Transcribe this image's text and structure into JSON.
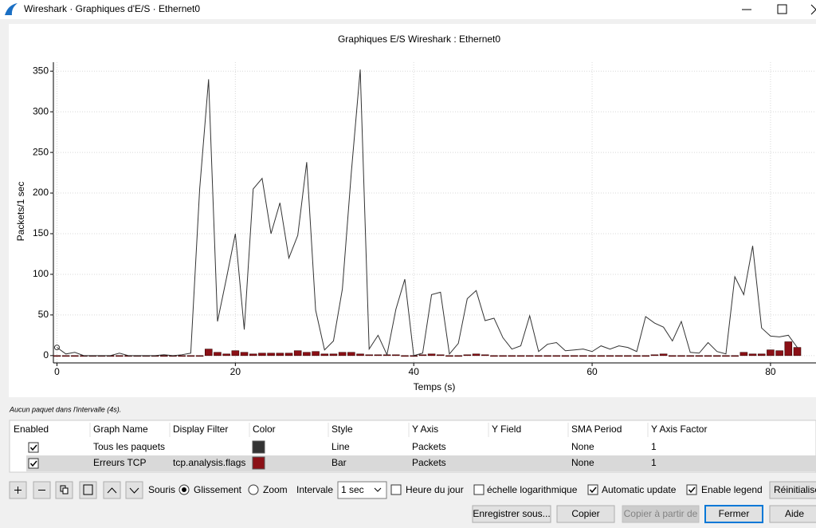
{
  "window": {
    "title": "Wireshark · Graphiques d'E/S · Ethernet0"
  },
  "chart_data": {
    "type": "line-bar",
    "title": "Graphiques E/S Wireshark : Ethernet0",
    "x_label": "Temps (s)",
    "y_label": "Packets/1 sec",
    "x": [
      0,
      1,
      2,
      3,
      4,
      5,
      6,
      7,
      8,
      9,
      10,
      11,
      12,
      13,
      14,
      15,
      16,
      17,
      18,
      19,
      20,
      21,
      22,
      23,
      24,
      25,
      26,
      27,
      28,
      29,
      30,
      31,
      32,
      33,
      34,
      35,
      36,
      37,
      38,
      39,
      40,
      41,
      42,
      43,
      44,
      45,
      46,
      47,
      48,
      49,
      50,
      51,
      52,
      53,
      54,
      55,
      56,
      57,
      58,
      59,
      60,
      61,
      62,
      63,
      64,
      65,
      66,
      67,
      68,
      69,
      70,
      71,
      72,
      73,
      74,
      75,
      76,
      77,
      78,
      79,
      80,
      81,
      82,
      83
    ],
    "series": [
      {
        "name": "Tous les paquets",
        "style": "line",
        "color": "#333333",
        "values": [
          10,
          2,
          4,
          0,
          0,
          0,
          0,
          3,
          0,
          0,
          0,
          0,
          1,
          0,
          1,
          3,
          205,
          340,
          42,
          95,
          150,
          32,
          205,
          218,
          150,
          188,
          120,
          148,
          238,
          56,
          7,
          18,
          82,
          225,
          352,
          8,
          25,
          1,
          57,
          94,
          0,
          3,
          75,
          78,
          2,
          15,
          70,
          80,
          43,
          46,
          22,
          8,
          12,
          49,
          5,
          14,
          16,
          6,
          7,
          8,
          5,
          12,
          8,
          12,
          10,
          5,
          48,
          40,
          35,
          18,
          42,
          4,
          3,
          16,
          5,
          2,
          97,
          75,
          135,
          34,
          24,
          23,
          25,
          10
        ]
      },
      {
        "name": "Erreurs TCP",
        "style": "bar",
        "color": "#8b1016",
        "values": [
          0,
          0,
          0,
          0,
          0,
          0,
          0,
          0,
          0,
          0,
          0,
          0,
          0,
          0,
          0,
          0,
          0,
          8,
          4,
          2,
          6,
          4,
          2,
          3,
          3,
          3,
          3,
          6,
          4,
          5,
          2,
          2,
          4,
          4,
          2,
          1,
          1,
          1,
          1,
          0,
          0,
          1,
          2,
          1,
          0,
          0,
          1,
          2,
          1,
          0,
          0,
          0,
          0,
          0,
          0,
          0,
          0,
          0,
          0,
          0,
          0,
          0,
          0,
          0,
          0,
          0,
          0,
          1,
          2,
          0,
          0,
          0,
          0,
          0,
          0,
          0,
          0,
          4,
          2,
          2,
          7,
          6,
          17,
          10
        ]
      }
    ],
    "xlim": [
      -0.4,
      85.1
    ],
    "ylim": [
      -9,
      361
    ],
    "xticks": [
      0,
      20,
      40,
      60,
      80
    ],
    "yticks": [
      0,
      50,
      100,
      150,
      200,
      250,
      300,
      350
    ],
    "grid": true
  },
  "status": "Aucun paquet dans l'intervalle (4s).",
  "table": {
    "headers": [
      "Enabled",
      "Graph Name",
      "Display Filter",
      "Color",
      "Style",
      "Y Axis",
      "Y Field",
      "SMA Period",
      "Y Axis Factor"
    ],
    "rows": [
      {
        "enabled": true,
        "graph_name": "Tous les paquets",
        "style": "Line",
        "y_axis": "Packets",
        "sma_period": "None",
        "y_axis_factor": "1"
      },
      {
        "enabled": true,
        "graph_name": "Erreurs TCP",
        "display_filter": "tcp.analysis.flags",
        "style": "Bar",
        "y_axis": "Packets",
        "sma_period": "None",
        "y_axis_factor": "1"
      }
    ]
  },
  "toolbar": {
    "souris": "Souris",
    "glissement": "Glissement",
    "zoom": "Zoom",
    "intervale": "Intervale",
    "interval_value": "1 sec",
    "heure": "Heure du jour",
    "heure_checked": false,
    "log": "échelle logarithmique",
    "log_checked": false,
    "auto": "Automatic update",
    "auto_checked": true,
    "legend": "Enable legend",
    "legend_checked": true,
    "reset": "Réinitialise"
  },
  "buttons": [
    "Enregistrer sous...",
    "Copier",
    "Copier à partir de",
    "Fermer",
    "Aide"
  ]
}
